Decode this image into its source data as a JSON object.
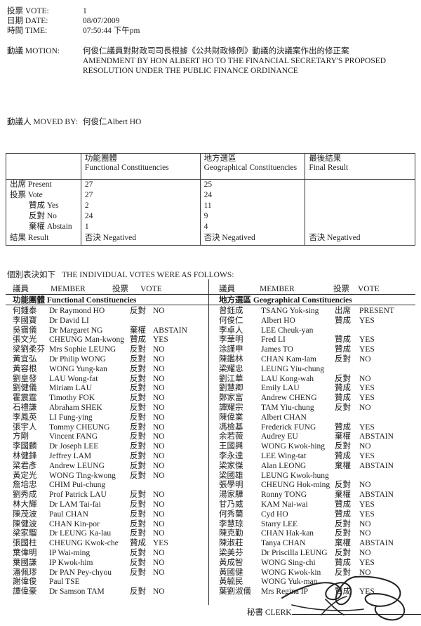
{
  "header": {
    "vote_label": "投票 VOTE:",
    "vote_value": "1",
    "date_label": "日期 DATE:",
    "date_value": "08/07/2009",
    "time_label": "時間 TIME:",
    "time_value": "07:50:44 下午pm",
    "motion_label": "動議 MOTION:",
    "motion_zh": "何俊仁議員對財政司司長根據《公共財政條例》動議的決議案作出的修正案",
    "motion_en": "AMENDMENT BY HON ALBERT HO TO THE FINANCIAL SECRETARY'S PROPOSED RESOLUTION UNDER THE PUBLIC FINANCE ORDINANCE",
    "moved_by_label": "動議人 MOVED BY:",
    "moved_by_value": "何俊仁Albert HO"
  },
  "summary_table": {
    "col_headers": [
      {
        "zh": "功能團體",
        "en": "Functional Constituencies"
      },
      {
        "zh": "地方選區",
        "en": "Geographical Constituencies"
      },
      {
        "zh": "最後結果",
        "en": "Final Result"
      }
    ],
    "rows": [
      {
        "label": "出席 Present",
        "indent": false,
        "fc": "27",
        "gc": "25",
        "final": ""
      },
      {
        "label": "投票 Vote",
        "indent": false,
        "fc": "27",
        "gc": "24",
        "final": ""
      },
      {
        "label": "贊成 Yes",
        "indent": true,
        "fc": "2",
        "gc": "11",
        "final": ""
      },
      {
        "label": "反對 No",
        "indent": true,
        "fc": "24",
        "gc": "9",
        "final": ""
      },
      {
        "label": "棄權 Abstain",
        "indent": true,
        "fc": "1",
        "gc": "4",
        "final": ""
      },
      {
        "label": "結果 Result",
        "indent": false,
        "result": true,
        "fc": "否決 Negatived",
        "gc": "否決 Negatived",
        "final": "否決 Negatived"
      }
    ]
  },
  "individual": {
    "title_zh": "個別表決如下",
    "title_en": "THE INDIVIDUAL VOTES WERE AS FOLLOWS:",
    "header": {
      "member_zh": "議員",
      "member_en": "MEMBER",
      "vote_zh": "投票",
      "vote_en": "VOTE"
    },
    "left": {
      "section_zh": "功能團體",
      "section_en": "Functional Constituencies",
      "rows": [
        {
          "zh": "何鍾泰",
          "en": "Dr Raymond HO",
          "vote_zh": "反對",
          "vote_en": "NO"
        },
        {
          "zh": "李國寶",
          "en": "Dr David LI",
          "vote_zh": "",
          "vote_en": ""
        },
        {
          "zh": "吳靄儀",
          "en": "Dr Margaret NG",
          "vote_zh": "棄權",
          "vote_en": "ABSTAIN"
        },
        {
          "zh": "張文光",
          "en": "CHEUNG Man-kwong",
          "vote_zh": "贊成",
          "vote_en": "YES"
        },
        {
          "zh": "梁劉柔芬",
          "en": "Mrs Sophie LEUNG",
          "vote_zh": "反對",
          "vote_en": "NO"
        },
        {
          "zh": "黃宜弘",
          "en": "Dr Philip WONG",
          "vote_zh": "反對",
          "vote_en": "NO"
        },
        {
          "zh": "黃容根",
          "en": "WONG Yung-kan",
          "vote_zh": "反對",
          "vote_en": "NO"
        },
        {
          "zh": "劉皇發",
          "en": "LAU Wong-fat",
          "vote_zh": "反對",
          "vote_en": "NO"
        },
        {
          "zh": "劉健儀",
          "en": "Miriam LAU",
          "vote_zh": "反對",
          "vote_en": "NO"
        },
        {
          "zh": "霍震霆",
          "en": "Timothy FOK",
          "vote_zh": "反對",
          "vote_en": "NO"
        },
        {
          "zh": "石禮謙",
          "en": "Abraham SHEK",
          "vote_zh": "反對",
          "vote_en": "NO"
        },
        {
          "zh": "李鳳英",
          "en": "LI Fung-ying",
          "vote_zh": "反對",
          "vote_en": "NO"
        },
        {
          "zh": "張宇人",
          "en": "Tommy CHEUNG",
          "vote_zh": "反對",
          "vote_en": "NO"
        },
        {
          "zh": "方剛",
          "en": "Vincent FANG",
          "vote_zh": "反對",
          "vote_en": "NO"
        },
        {
          "zh": "李國麟",
          "en": "Dr Joseph LEE",
          "vote_zh": "反對",
          "vote_en": "NO"
        },
        {
          "zh": "林健鋒",
          "en": "Jeffrey LAM",
          "vote_zh": "反對",
          "vote_en": "NO"
        },
        {
          "zh": "梁君彥",
          "en": "Andrew LEUNG",
          "vote_zh": "反對",
          "vote_en": "NO"
        },
        {
          "zh": "黃定光",
          "en": "WONG Ting-kwong",
          "vote_zh": "反對",
          "vote_en": "NO"
        },
        {
          "zh": "詹培忠",
          "en": "CHIM Pui-chung",
          "vote_zh": "",
          "vote_en": ""
        },
        {
          "zh": "劉秀成",
          "en": "Prof Patrick LAU",
          "vote_zh": "反對",
          "vote_en": "NO"
        },
        {
          "zh": "林大輝",
          "en": "Dr LAM Tai-fai",
          "vote_zh": "反對",
          "vote_en": "NO"
        },
        {
          "zh": "陳茂波",
          "en": "Paul CHAN",
          "vote_zh": "反對",
          "vote_en": "NO"
        },
        {
          "zh": "陳健波",
          "en": "CHAN Kin-por",
          "vote_zh": "反對",
          "vote_en": "NO"
        },
        {
          "zh": "梁家騮",
          "en": "Dr LEUNG Ka-lau",
          "vote_zh": "反對",
          "vote_en": "NO"
        },
        {
          "zh": "張國柱",
          "en": "CHEUNG Kwok-che",
          "vote_zh": "贊成",
          "vote_en": "YES"
        },
        {
          "zh": "葉偉明",
          "en": "IP Wai-ming",
          "vote_zh": "反對",
          "vote_en": "NO"
        },
        {
          "zh": "葉國謙",
          "en": "IP Kwok-him",
          "vote_zh": "反對",
          "vote_en": "NO"
        },
        {
          "zh": "潘佩璆",
          "en": "Dr PAN Pey-chyou",
          "vote_zh": "反對",
          "vote_en": "NO"
        },
        {
          "zh": "謝偉俊",
          "en": "Paul TSE",
          "vote_zh": "",
          "vote_en": ""
        },
        {
          "zh": "譚偉豪",
          "en": "Dr Samson TAM",
          "vote_zh": "反對",
          "vote_en": "NO"
        }
      ]
    },
    "right": {
      "section_zh": "地方選區",
      "section_en": "Geographical Constituencies",
      "rows": [
        {
          "zh": "曾鈺成",
          "en": "TSANG Yok-sing",
          "vote_zh": "出席",
          "vote_en": "PRESENT"
        },
        {
          "zh": "何俊仁",
          "en": "Albert HO",
          "vote_zh": "贊成",
          "vote_en": "YES"
        },
        {
          "zh": "李卓人",
          "en": "LEE Cheuk-yan",
          "vote_zh": "",
          "vote_en": ""
        },
        {
          "zh": "李華明",
          "en": "Fred LI",
          "vote_zh": "贊成",
          "vote_en": "YES"
        },
        {
          "zh": "涂謹申",
          "en": "James TO",
          "vote_zh": "贊成",
          "vote_en": "YES"
        },
        {
          "zh": "陳鑑林",
          "en": "CHAN Kam-lam",
          "vote_zh": "反對",
          "vote_en": "NO"
        },
        {
          "zh": "梁耀忠",
          "en": "LEUNG Yiu-chung",
          "vote_zh": "",
          "vote_en": ""
        },
        {
          "zh": "劉江華",
          "en": "LAU Kong-wah",
          "vote_zh": "反對",
          "vote_en": "NO"
        },
        {
          "zh": "劉慧卿",
          "en": "Emily LAU",
          "vote_zh": "贊成",
          "vote_en": "YES"
        },
        {
          "zh": "鄭家富",
          "en": "Andrew CHENG",
          "vote_zh": "贊成",
          "vote_en": "YES"
        },
        {
          "zh": "譚耀宗",
          "en": "TAM Yiu-chung",
          "vote_zh": "反對",
          "vote_en": "NO"
        },
        {
          "zh": "陳偉業",
          "en": "Albert CHAN",
          "vote_zh": "",
          "vote_en": ""
        },
        {
          "zh": "馮檢基",
          "en": "Frederick FUNG",
          "vote_zh": "贊成",
          "vote_en": "YES"
        },
        {
          "zh": "余若薇",
          "en": "Audrey EU",
          "vote_zh": "棄權",
          "vote_en": "ABSTAIN"
        },
        {
          "zh": "王國興",
          "en": "WONG Kwok-hing",
          "vote_zh": "反對",
          "vote_en": "NO"
        },
        {
          "zh": "李永達",
          "en": "LEE Wing-tat",
          "vote_zh": "贊成",
          "vote_en": "YES"
        },
        {
          "zh": "梁家傑",
          "en": "Alan LEONG",
          "vote_zh": "棄權",
          "vote_en": "ABSTAIN"
        },
        {
          "zh": "梁國雄",
          "en": "LEUNG Kwok-hung",
          "vote_zh": "",
          "vote_en": ""
        },
        {
          "zh": "張學明",
          "en": "CHEUNG Hok-ming",
          "vote_zh": "反對",
          "vote_en": "NO"
        },
        {
          "zh": "湯家驊",
          "en": "Ronny TONG",
          "vote_zh": "棄權",
          "vote_en": "ABSTAIN"
        },
        {
          "zh": "甘乃威",
          "en": "KAM Nai-wai",
          "vote_zh": "贊成",
          "vote_en": "YES"
        },
        {
          "zh": "何秀蘭",
          "en": "Cyd HO",
          "vote_zh": "贊成",
          "vote_en": "YES"
        },
        {
          "zh": "李慧琼",
          "en": "Starry LEE",
          "vote_zh": "反對",
          "vote_en": "NO"
        },
        {
          "zh": "陳克勤",
          "en": "CHAN Hak-kan",
          "vote_zh": "反對",
          "vote_en": "NO"
        },
        {
          "zh": "陳淑莊",
          "en": "Tanya CHAN",
          "vote_zh": "棄權",
          "vote_en": "ABSTAIN"
        },
        {
          "zh": "梁美芬",
          "en": "Dr Priscilla LEUNG",
          "vote_zh": "反對",
          "vote_en": "NO"
        },
        {
          "zh": "黃成智",
          "en": "WONG Sing-chi",
          "vote_zh": "贊成",
          "vote_en": "YES"
        },
        {
          "zh": "黃國健",
          "en": "WONG Kwok-kin",
          "vote_zh": "反對",
          "vote_en": "NO"
        },
        {
          "zh": "黃毓民",
          "en": "WONG Yuk-man",
          "vote_zh": "",
          "vote_en": ""
        },
        {
          "zh": "葉劉淑儀",
          "en": "Mrs Regina IP",
          "vote_zh": "贊成",
          "vote_en": "YES"
        }
      ]
    }
  },
  "footer": {
    "clerk_label": "秘書 CLERK"
  },
  "colors": {
    "ink": "#1c1c1c",
    "paper": "#ffffff",
    "rule": "#2f2f2f"
  }
}
